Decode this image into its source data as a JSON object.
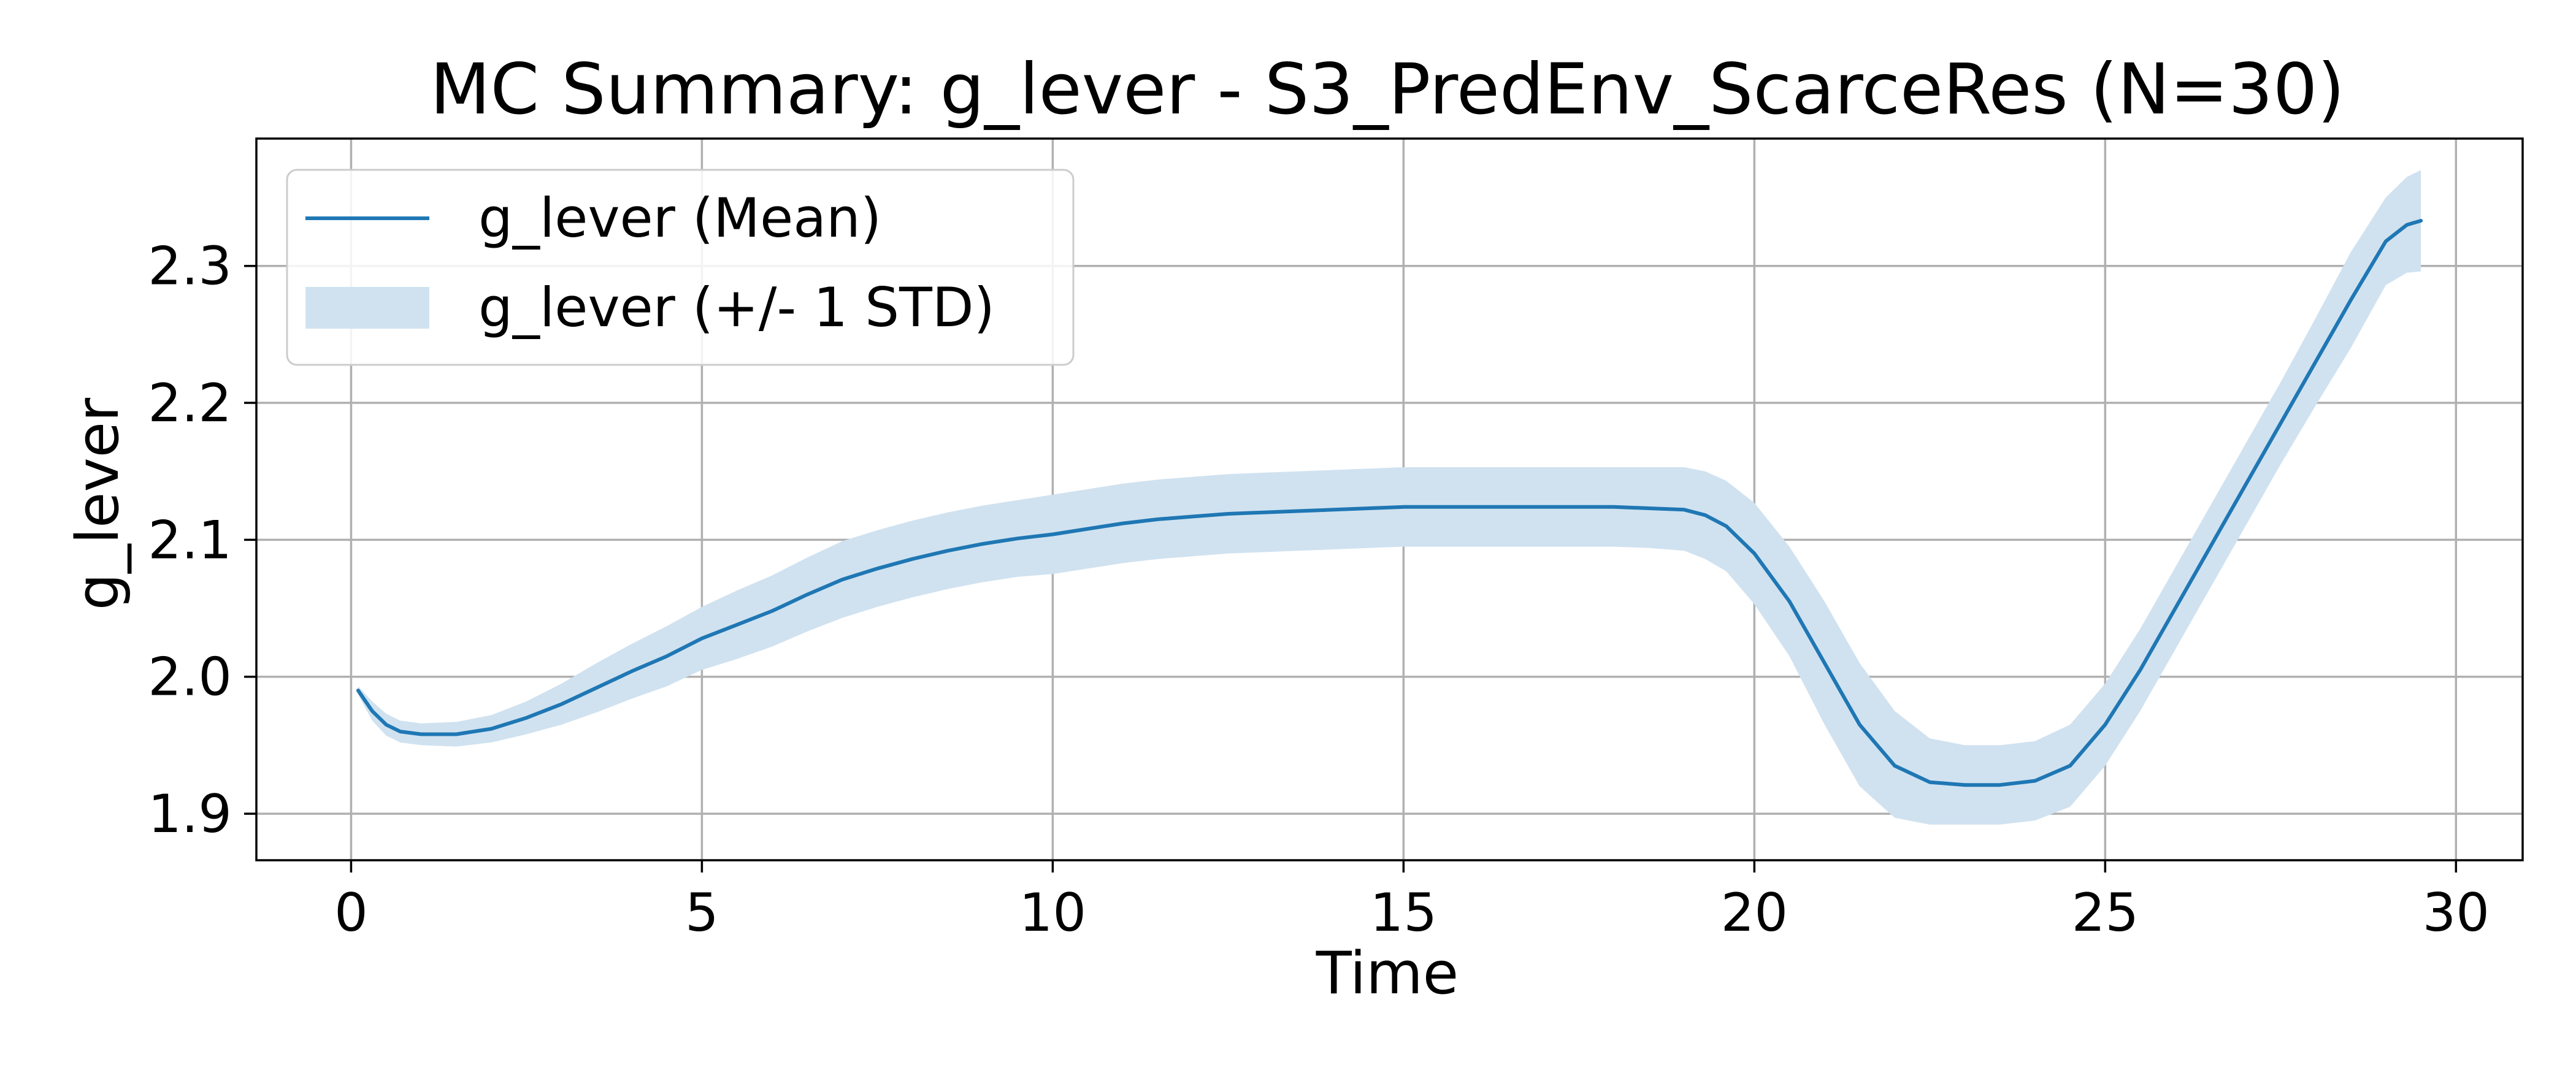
{
  "chart_data": {
    "type": "line",
    "title": "MC Summary: g_lever - S3_PredEnv_ScarceRes (N=30)",
    "xlabel": "Time",
    "ylabel": "g_lever",
    "xlim": [
      -1.35,
      30.95
    ],
    "ylim": [
      1.866,
      2.393
    ],
    "xticks": [
      0,
      5,
      10,
      15,
      20,
      25,
      30
    ],
    "yticks": [
      1.9,
      2.0,
      2.1,
      2.2,
      2.3
    ],
    "xtick_labels": [
      "0",
      "5",
      "10",
      "15",
      "20",
      "25",
      "30"
    ],
    "ytick_labels": [
      "1.9",
      "2.0",
      "2.1",
      "2.2",
      "2.3"
    ],
    "grid": true,
    "legend_position": "top-left",
    "line_color": "#1f77b4",
    "band_color": "#d0e2f0",
    "series": [
      {
        "name": "g_lever (Mean)",
        "kind": "line",
        "x": [
          0.1,
          0.3,
          0.5,
          0.7,
          1.0,
          1.5,
          2.0,
          2.5,
          3.0,
          3.5,
          4.0,
          4.5,
          5.0,
          5.5,
          6.0,
          6.5,
          7.0,
          7.5,
          8.0,
          8.5,
          9.0,
          9.5,
          10.0,
          10.5,
          11.0,
          11.5,
          12.0,
          12.5,
          13.0,
          13.5,
          14.0,
          14.5,
          15.0,
          15.5,
          16.0,
          16.5,
          17.0,
          17.5,
          18.0,
          18.5,
          19.0,
          19.3,
          19.6,
          20.0,
          20.5,
          21.0,
          21.5,
          22.0,
          22.5,
          23.0,
          23.5,
          24.0,
          24.5,
          25.0,
          25.5,
          26.0,
          26.5,
          27.0,
          27.5,
          28.0,
          28.5,
          29.0,
          29.3,
          29.5
        ],
        "y": [
          1.99,
          1.975,
          1.965,
          1.96,
          1.958,
          1.958,
          1.962,
          1.97,
          1.98,
          1.992,
          2.004,
          2.015,
          2.028,
          2.038,
          2.048,
          2.06,
          2.071,
          2.079,
          2.086,
          2.092,
          2.097,
          2.101,
          2.104,
          2.108,
          2.112,
          2.115,
          2.117,
          2.119,
          2.12,
          2.121,
          2.122,
          2.123,
          2.124,
          2.124,
          2.124,
          2.124,
          2.124,
          2.124,
          2.124,
          2.123,
          2.122,
          2.118,
          2.11,
          2.09,
          2.055,
          2.01,
          1.965,
          1.935,
          1.923,
          1.921,
          1.921,
          1.924,
          1.935,
          1.965,
          2.005,
          2.05,
          2.095,
          2.14,
          2.185,
          2.23,
          2.275,
          2.318,
          2.33,
          2.333
        ]
      },
      {
        "name": "g_lever (+/- 1 STD)",
        "kind": "band",
        "x": [
          0.1,
          0.3,
          0.5,
          0.7,
          1.0,
          1.5,
          2.0,
          2.5,
          3.0,
          3.5,
          4.0,
          4.5,
          5.0,
          5.5,
          6.0,
          6.5,
          7.0,
          7.5,
          8.0,
          8.5,
          9.0,
          9.5,
          10.0,
          10.5,
          11.0,
          11.5,
          12.0,
          12.5,
          13.0,
          13.5,
          14.0,
          14.5,
          15.0,
          15.5,
          16.0,
          16.5,
          17.0,
          17.5,
          18.0,
          18.5,
          19.0,
          19.3,
          19.6,
          20.0,
          20.5,
          21.0,
          21.5,
          22.0,
          22.5,
          23.0,
          23.5,
          24.0,
          24.5,
          25.0,
          25.5,
          26.0,
          26.5,
          27.0,
          27.5,
          28.0,
          28.5,
          29.0,
          29.3,
          29.5
        ],
        "upper": [
          1.993,
          1.982,
          1.973,
          1.968,
          1.966,
          1.967,
          1.972,
          1.982,
          1.995,
          2.01,
          2.024,
          2.037,
          2.051,
          2.063,
          2.074,
          2.087,
          2.099,
          2.107,
          2.114,
          2.12,
          2.125,
          2.129,
          2.133,
          2.137,
          2.141,
          2.144,
          2.146,
          2.148,
          2.149,
          2.15,
          2.151,
          2.152,
          2.153,
          2.153,
          2.153,
          2.153,
          2.153,
          2.153,
          2.153,
          2.153,
          2.153,
          2.15,
          2.143,
          2.127,
          2.095,
          2.055,
          2.01,
          1.975,
          1.955,
          1.95,
          1.95,
          1.953,
          1.965,
          1.995,
          2.035,
          2.08,
          2.125,
          2.17,
          2.215,
          2.262,
          2.31,
          2.35,
          2.365,
          2.37
        ],
        "lower": [
          1.987,
          1.968,
          1.957,
          1.952,
          1.95,
          1.949,
          1.952,
          1.958,
          1.965,
          1.974,
          1.984,
          1.993,
          2.005,
          2.013,
          2.022,
          2.033,
          2.043,
          2.051,
          2.058,
          2.064,
          2.069,
          2.073,
          2.075,
          2.079,
          2.083,
          2.086,
          2.088,
          2.09,
          2.091,
          2.092,
          2.093,
          2.094,
          2.095,
          2.095,
          2.095,
          2.095,
          2.095,
          2.095,
          2.095,
          2.094,
          2.092,
          2.086,
          2.077,
          2.053,
          2.015,
          1.965,
          1.92,
          1.897,
          1.892,
          1.892,
          1.892,
          1.895,
          1.905,
          1.935,
          1.975,
          2.02,
          2.065,
          2.11,
          2.155,
          2.198,
          2.24,
          2.286,
          2.295,
          2.296
        ]
      }
    ]
  }
}
